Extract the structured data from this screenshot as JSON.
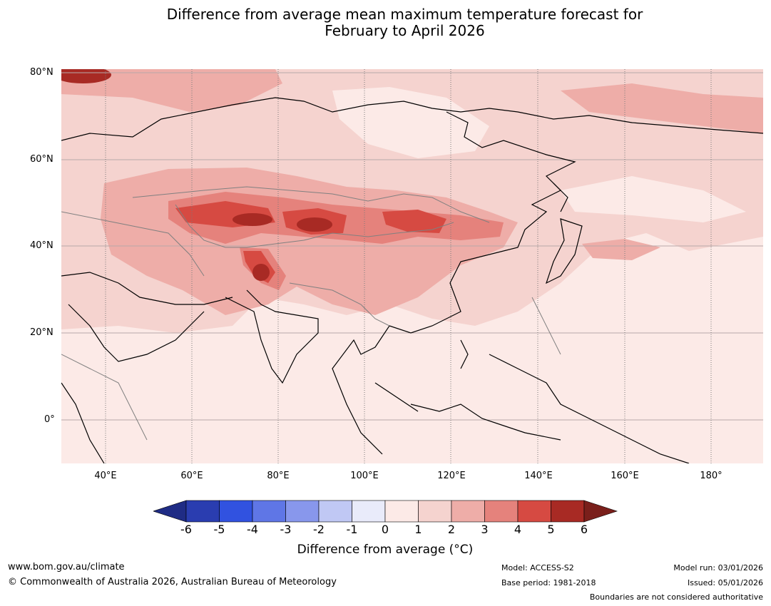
{
  "title": {
    "line1": "Difference from average mean maximum temperature forecast for",
    "line2": "February to April 2026"
  },
  "axes": {
    "lat_labels": [
      "80°N",
      "60°N",
      "40°N",
      "20°N",
      "0°"
    ],
    "lon_labels": [
      "40°E",
      "60°E",
      "80°E",
      "100°E",
      "120°E",
      "140°E",
      "160°E",
      "180°"
    ]
  },
  "colorbar": {
    "ticks": [
      "-6",
      "-5",
      "-4",
      "-3",
      "-2",
      "-1",
      "0",
      "1",
      "2",
      "3",
      "4",
      "5",
      "6"
    ],
    "colors": [
      "#1f2c85",
      "#2a3db0",
      "#3152e0",
      "#5f76e6",
      "#8897ec",
      "#c0c8f4",
      "#e9ebfa",
      "#fceae7",
      "#f5d3cf",
      "#eeada8",
      "#e5827c",
      "#d64a42",
      "#a82a24",
      "#7a1f1b"
    ],
    "label": "Difference from average (°C)"
  },
  "footer": {
    "website": "www.bom.gov.au/climate",
    "copyright": "© Commonwealth of Australia 2026, Australian Bureau of Meteorology",
    "model": "Model: ACCESS-S2",
    "base_period": "Base period: 1981-2018",
    "model_run": "Model run: 03/01/2026",
    "issued": "Issued: 05/01/2026",
    "disclaimer": "Boundaries are not considered authoritative"
  }
}
